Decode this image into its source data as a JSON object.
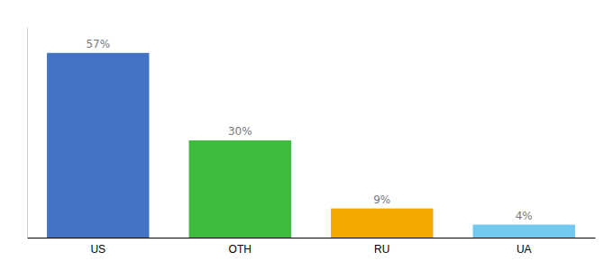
{
  "chart_data": {
    "type": "bar",
    "categories": [
      "US",
      "OTH",
      "RU",
      "UA"
    ],
    "values": [
      57,
      30,
      9,
      4
    ],
    "value_labels": [
      "57%",
      "30%",
      "9%",
      "4%"
    ],
    "colors": [
      "#4472c4",
      "#3dbb3d",
      "#f5a800",
      "#72c9f0"
    ],
    "ylim": [
      0,
      65
    ],
    "data_labels": true,
    "tick_labels": "x",
    "grid": false
  }
}
